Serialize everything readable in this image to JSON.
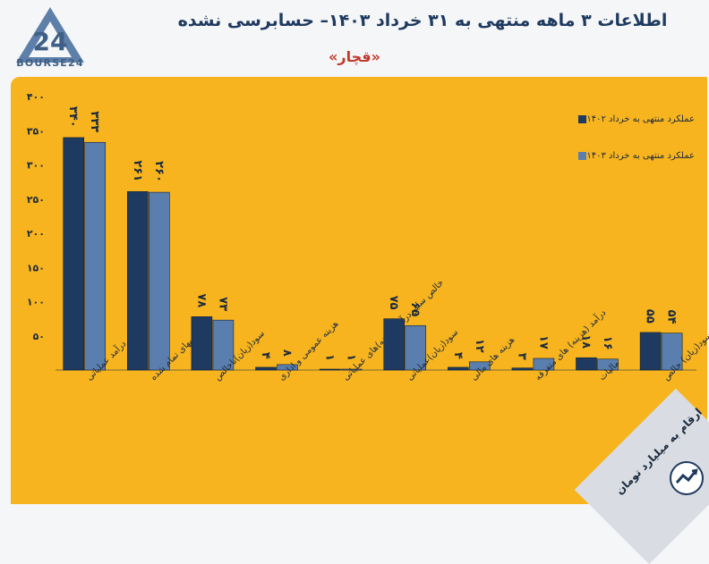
{
  "header": {
    "title": "اطلاعات ۳ ماهه منتهی به ۳۱ خرداد ۱۴۰۳– حسابرسی نشده",
    "company": "«قچار»",
    "logo_text": "BOURSE24",
    "logo_number": "24"
  },
  "footnote": {
    "text": "ارقام به میلیارد تومان"
  },
  "colors": {
    "panel": "#f7b41f",
    "series1": "#1f3a60",
    "series2": "#5a7fae",
    "axis": "#1b2a3d"
  },
  "chart_data": {
    "type": "bar",
    "title": "",
    "xlabel": "",
    "ylabel": "",
    "ylim": [
      0,
      400
    ],
    "yticks": [
      {
        "value": 50,
        "label": "۵۰"
      },
      {
        "value": 100,
        "label": "۱۰۰"
      },
      {
        "value": 150,
        "label": "۱۵۰"
      },
      {
        "value": 200,
        "label": "۲۰۰"
      },
      {
        "value": 250,
        "label": "۲۵۰"
      },
      {
        "value": 300,
        "label": "۳۰۰"
      },
      {
        "value": 350,
        "label": "۳۵۰"
      },
      {
        "value": 400,
        "label": "۴۰۰"
      }
    ],
    "categories": [
      "درآمد عملیاتی",
      "بهای تمام شده",
      "سود(زیان)ناخالص",
      "هزینه عمومی و اداری",
      "خالص سایر درآمد(هزینه)های عملیاتی",
      "سود(زیان)عملیاتی",
      "هزینه های مالی",
      "درآمد (هزینه) های متفرقه",
      "مالیات",
      "سود(زیان) خالص"
    ],
    "series": [
      {
        "name": "عملکرد منتهی به خرداد ۱۴۰۲",
        "values": [
          340,
          261,
          78,
          4,
          1,
          75,
          4,
          3,
          18,
          55
        ],
        "labels": [
          "۳۴۰",
          "۲۶۱",
          "۷۸",
          "۴",
          "۱",
          "۷۵",
          "۴",
          "۳",
          "۱۸",
          "۵۵"
        ]
      },
      {
        "name": "عملکرد منتهی به خرداد ۱۴۰۳",
        "values": [
          333,
          260,
          73,
          8,
          1,
          65,
          12,
          17,
          16,
          54
        ],
        "labels": [
          "۳۳۳",
          "۲۶۰",
          "۷۳",
          "۸",
          "۱",
          "۶۵",
          "۱۲",
          "۱۷",
          "۱۶",
          "۵۴"
        ]
      }
    ],
    "legend": "top-right",
    "grid": false
  }
}
